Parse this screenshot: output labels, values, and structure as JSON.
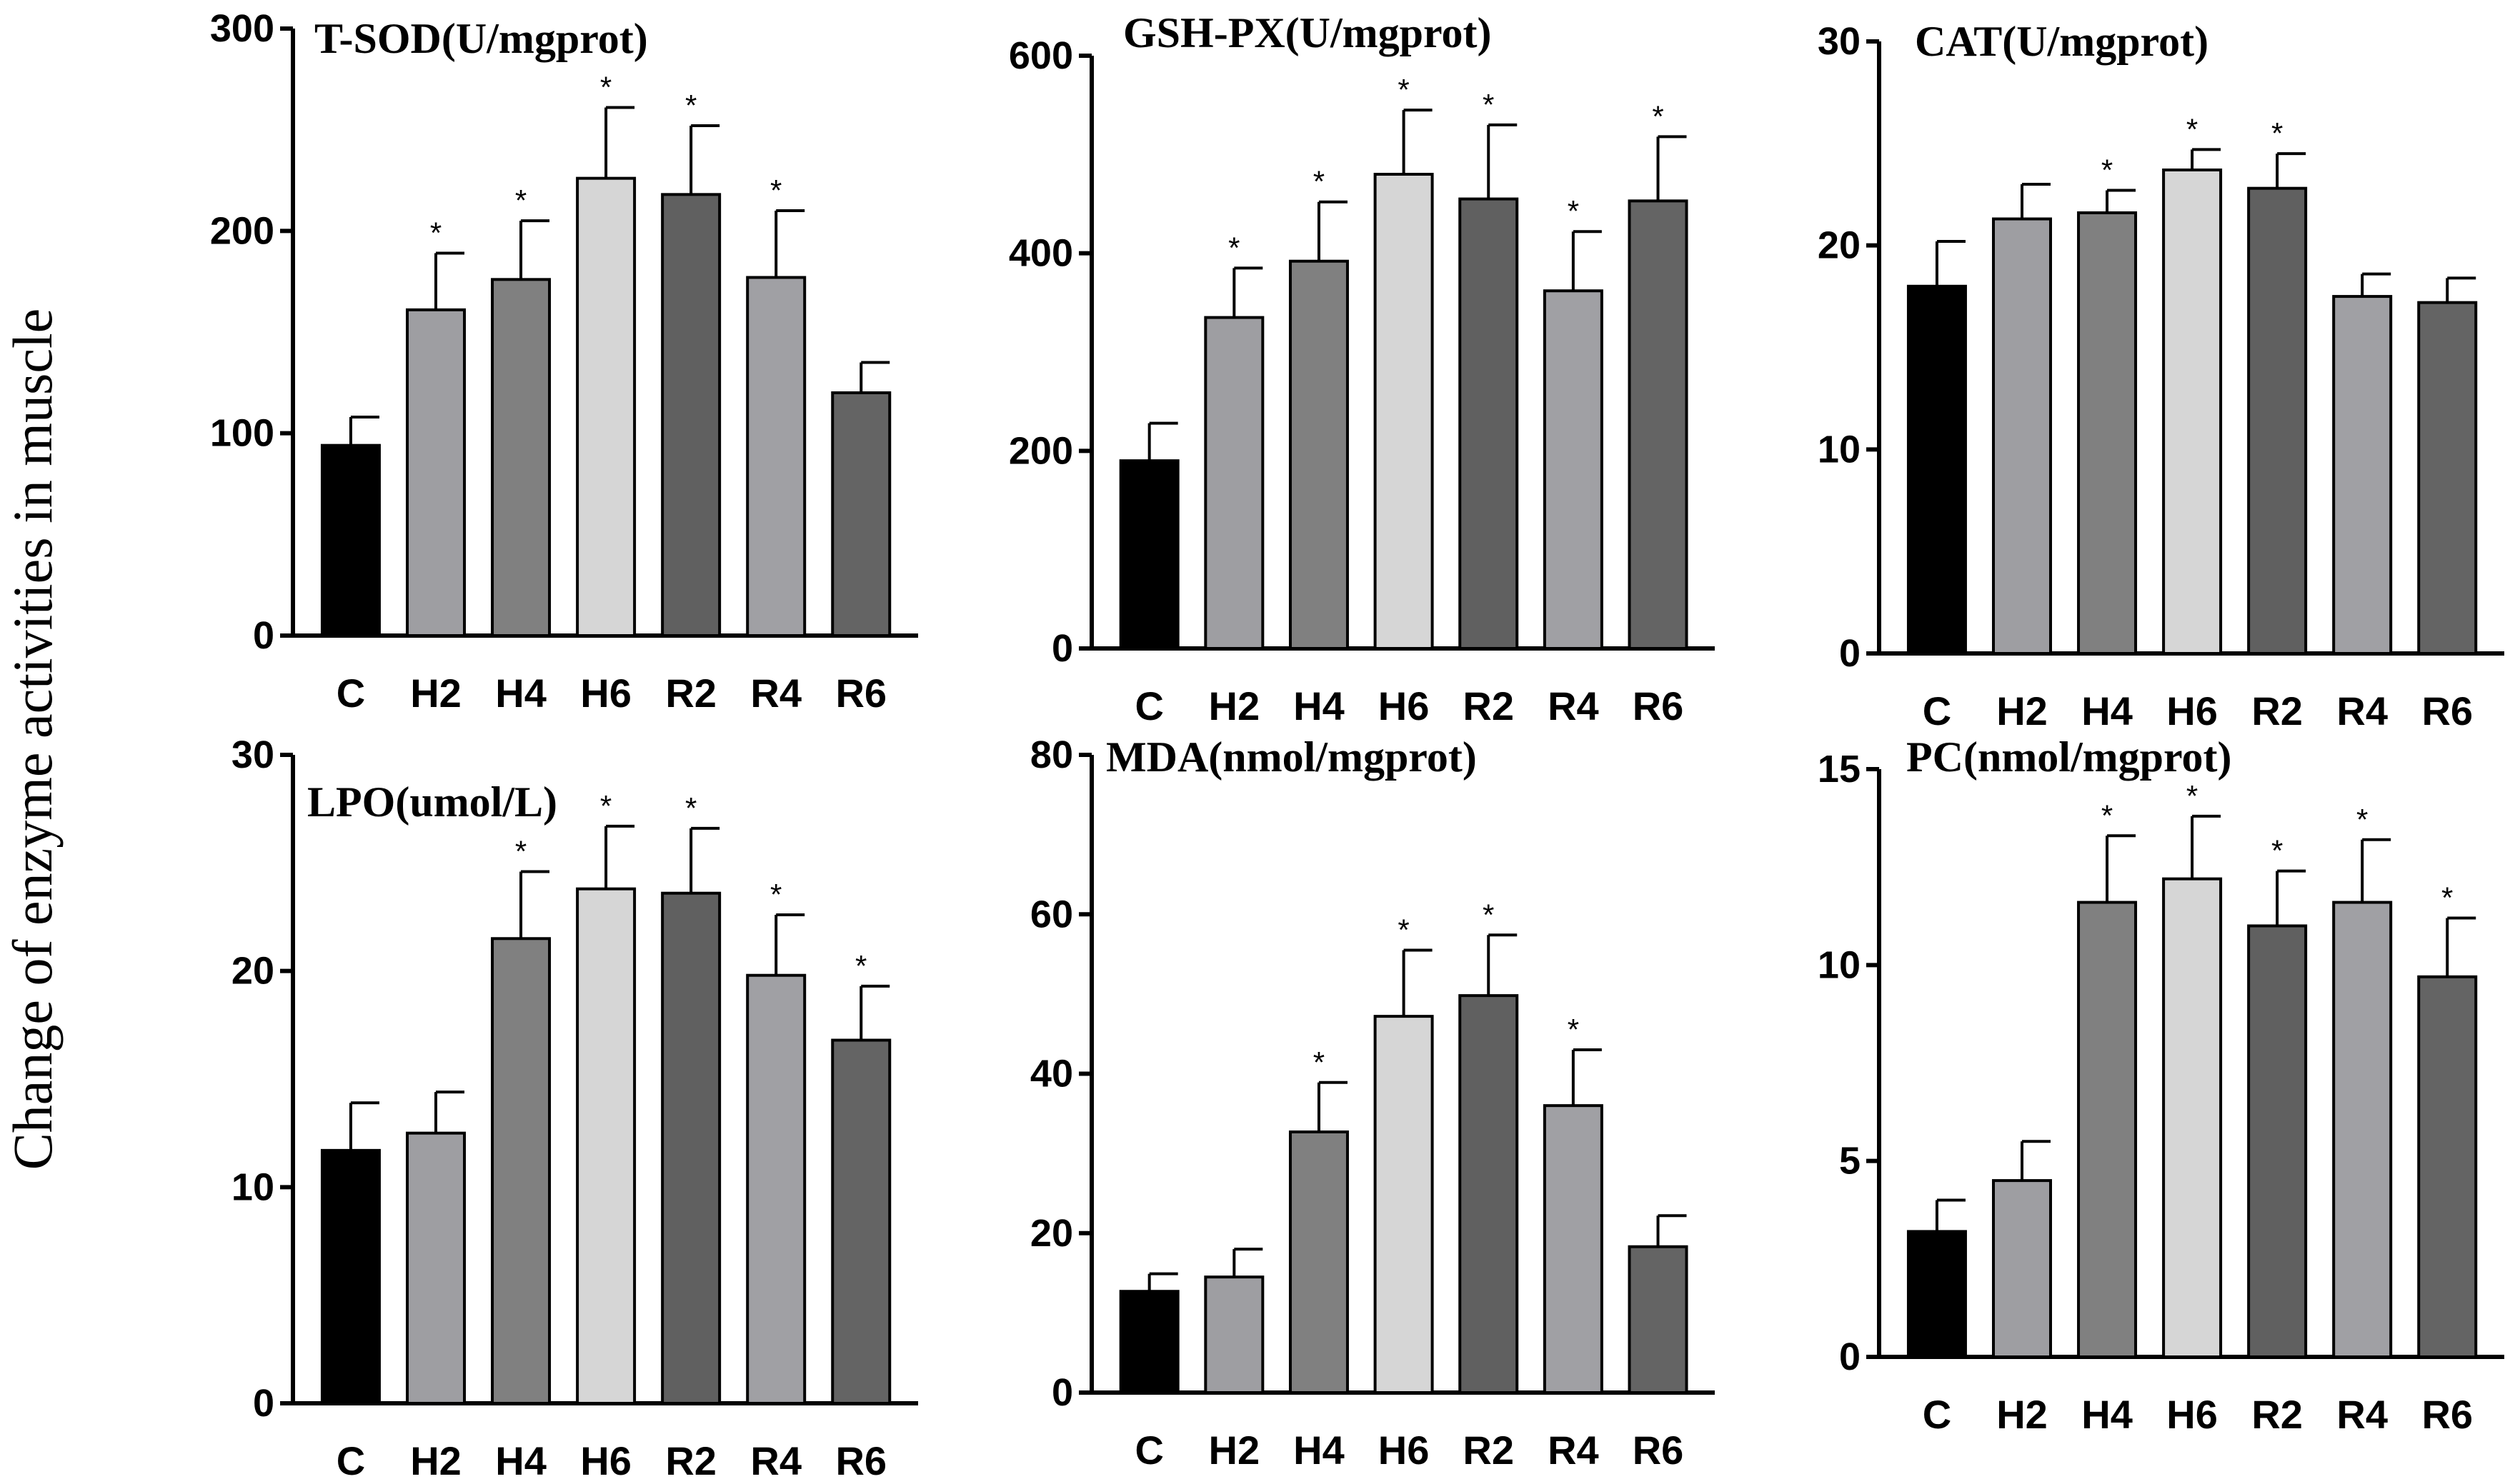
{
  "figure": {
    "ylabel": "Change of enzyme activities in muscle"
  },
  "colors": {
    "C": "#000000",
    "H2": "#9e9ea2",
    "H4": "#808080",
    "H6": "#d6d6d6",
    "R2": "#606060",
    "R4": "#a0a0a4",
    "R6": "#646464",
    "edge": "#000000"
  },
  "chart_data": [
    {
      "type": "bar",
      "title": "T-SOD(U/mgprot)",
      "categories": [
        "C",
        "H2",
        "H4",
        "H6",
        "R2",
        "R4",
        "R6"
      ],
      "values": [
        94,
        161,
        176,
        226,
        218,
        177,
        120
      ],
      "errors": [
        14,
        28,
        29,
        35,
        34,
        33,
        15
      ],
      "significant": [
        false,
        true,
        true,
        true,
        true,
        true,
        false
      ],
      "ylim": [
        0,
        300
      ],
      "yticks": [
        0,
        100,
        200,
        300
      ],
      "star_label": "*"
    },
    {
      "type": "bar",
      "title": "GSH-PX(U/mgprot)",
      "categories": [
        "C",
        "H2",
        "H4",
        "H6",
        "R2",
        "R4",
        "R6"
      ],
      "values": [
        190,
        335,
        392,
        480,
        455,
        362,
        453
      ],
      "errors": [
        38,
        50,
        60,
        65,
        75,
        60,
        65
      ],
      "significant": [
        false,
        true,
        true,
        true,
        true,
        true,
        true
      ],
      "ylim": [
        0,
        600
      ],
      "yticks": [
        0,
        200,
        400,
        600
      ],
      "star_label": "*"
    },
    {
      "type": "bar",
      "title": "CAT(U/mgprot)",
      "categories": [
        "C",
        "H2",
        "H4",
        "H6",
        "R2",
        "R4",
        "R6"
      ],
      "values": [
        18,
        21.3,
        21.6,
        23.7,
        22.8,
        17.5,
        17.2
      ],
      "errors": [
        2.2,
        1.7,
        1.1,
        1.0,
        1.7,
        1.1,
        1.2
      ],
      "significant": [
        false,
        false,
        true,
        true,
        true,
        false,
        false
      ],
      "ylim": [
        0,
        30
      ],
      "yticks": [
        0,
        10,
        20,
        30
      ],
      "star_label": "*"
    },
    {
      "type": "bar",
      "title": "LPO(umol/L)",
      "categories": [
        "C",
        "H2",
        "H4",
        "H6",
        "R2",
        "R4",
        "R6"
      ],
      "values": [
        11.7,
        12.5,
        21.5,
        23.8,
        23.6,
        19.8,
        16.8
      ],
      "errors": [
        2.2,
        1.9,
        3.1,
        2.9,
        3.0,
        2.8,
        2.5
      ],
      "significant": [
        false,
        false,
        true,
        true,
        true,
        true,
        true
      ],
      "ylim": [
        0,
        30
      ],
      "yticks": [
        0,
        10,
        20,
        30
      ],
      "star_label": "*"
    },
    {
      "type": "bar",
      "title": "MDA(nmol/mgprot)",
      "categories": [
        "C",
        "H2",
        "H4",
        "H6",
        "R2",
        "R4",
        "R6"
      ],
      "values": [
        12.7,
        14.5,
        32.7,
        47.2,
        49.8,
        36,
        18.3
      ],
      "errors": [
        2.2,
        3.5,
        6.2,
        8.3,
        7.6,
        7.0,
        3.9
      ],
      "significant": [
        false,
        false,
        true,
        true,
        true,
        true,
        false
      ],
      "ylim": [
        0,
        80
      ],
      "yticks": [
        0,
        20,
        40,
        60,
        80
      ],
      "star_label": "*"
    },
    {
      "type": "bar",
      "title": "PC(nmol/mgprot)",
      "categories": [
        "C",
        "H2",
        "H4",
        "H6",
        "R2",
        "R4",
        "R6"
      ],
      "values": [
        3.2,
        4.5,
        11.6,
        12.2,
        11,
        11.6,
        9.7
      ],
      "errors": [
        0.8,
        1.0,
        1.7,
        1.6,
        1.4,
        1.6,
        1.5
      ],
      "significant": [
        false,
        false,
        true,
        true,
        true,
        true,
        true
      ],
      "ylim": [
        0,
        15
      ],
      "yticks": [
        0,
        5,
        10,
        15
      ],
      "star_label": "*"
    }
  ]
}
